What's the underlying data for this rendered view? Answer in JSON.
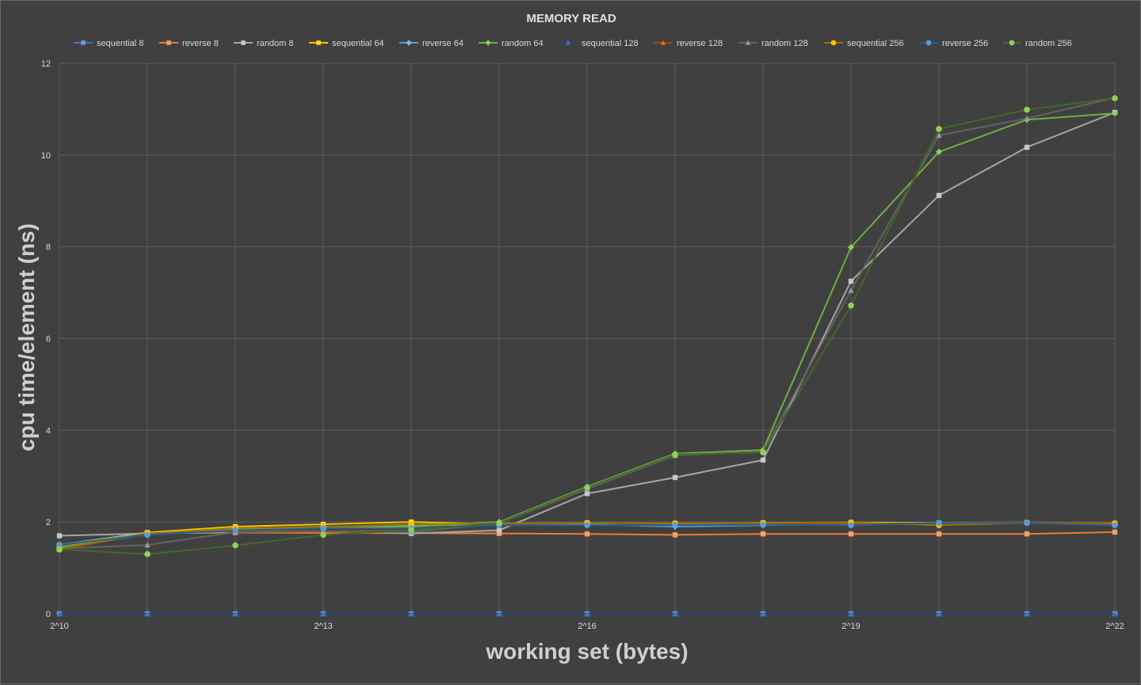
{
  "chart_data": {
    "type": "line",
    "title": "MEMORY READ",
    "xlabel": "working set (bytes)",
    "ylabel": "cpu time/element (ns)",
    "x": [
      1024,
      2048,
      4096,
      8192,
      16384,
      32768,
      65536,
      131072,
      262144,
      524288,
      1048576,
      2097152,
      4194304
    ],
    "x_tick_labels": [
      "2^10",
      "2^13",
      "2^16",
      "2^19",
      "2^22"
    ],
    "x_tick_values": [
      1024,
      8192,
      65536,
      524288,
      4194304
    ],
    "x_scale": "log2",
    "ylim": [
      0,
      12
    ],
    "y_ticks": [
      0,
      2,
      4,
      6,
      8,
      10,
      12
    ],
    "grid": true,
    "legend_position": "top",
    "series": [
      {
        "name": "sequential 8",
        "color": "#4472c4",
        "marker": "square",
        "values": [
          0,
          0,
          0,
          0,
          0,
          0,
          0,
          0,
          0,
          0,
          0,
          0,
          0
        ]
      },
      {
        "name": "reverse 8",
        "color": "#ed7d31",
        "marker": "square",
        "values": [
          1.45,
          1.75,
          1.77,
          1.76,
          1.76,
          1.75,
          1.74,
          1.72,
          1.74,
          1.74,
          1.74,
          1.74,
          1.78
        ]
      },
      {
        "name": "random 8",
        "color": "#a5a5a5",
        "marker": "square",
        "values": [
          1.7,
          1.75,
          1.78,
          1.8,
          1.75,
          1.82,
          2.62,
          2.97,
          3.35,
          7.25,
          9.12,
          10.17,
          10.93
        ]
      },
      {
        "name": "sequential 64",
        "color": "#ffc000",
        "marker": "square",
        "values": [
          1.5,
          1.77,
          1.9,
          1.95,
          2.0,
          1.95,
          1.98,
          1.97,
          1.98,
          1.99,
          1.98,
          1.99,
          1.97
        ]
      },
      {
        "name": "reverse 64",
        "color": "#5b9bd5",
        "marker": "diamond",
        "values": [
          1.5,
          1.75,
          1.85,
          1.9,
          1.92,
          1.95,
          1.95,
          1.9,
          1.93,
          1.95,
          1.98,
          1.98,
          1.93
        ]
      },
      {
        "name": "random 64",
        "color": "#70ad47",
        "marker": "diamond",
        "values": [
          1.45,
          1.73,
          1.85,
          1.87,
          1.9,
          2.0,
          2.77,
          3.49,
          3.57,
          7.99,
          10.07,
          10.77,
          10.91
        ]
      },
      {
        "name": "sequential 128",
        "color": "#264478",
        "marker": "triangle",
        "values": [
          0,
          0,
          0,
          0,
          0,
          0,
          0,
          0,
          0,
          0,
          0,
          0,
          0
        ]
      },
      {
        "name": "reverse 128",
        "color": "#9e480e",
        "marker": "triangle",
        "values": [
          1.4,
          1.75,
          1.8,
          1.8,
          1.82,
          1.95,
          1.98,
          1.98,
          1.97,
          1.97,
          1.97,
          1.99,
          1.98
        ]
      },
      {
        "name": "random 128",
        "color": "#636363",
        "marker": "triangle",
        "values": [
          1.42,
          1.5,
          1.78,
          1.79,
          1.78,
          1.97,
          2.72,
          3.45,
          3.54,
          7.05,
          10.43,
          10.8,
          11.25
        ]
      },
      {
        "name": "sequential 256",
        "color": "#997300",
        "marker": "circle",
        "values": [
          1.42,
          1.74,
          1.87,
          1.89,
          1.95,
          1.97,
          1.98,
          1.97,
          1.98,
          1.99,
          1.93,
          1.98,
          1.97
        ]
      },
      {
        "name": "reverse 256",
        "color": "#255e91",
        "marker": "circle",
        "values": [
          1.5,
          1.72,
          1.82,
          1.86,
          1.86,
          1.93,
          1.93,
          1.93,
          1.94,
          1.93,
          1.98,
          1.98,
          1.93
        ]
      },
      {
        "name": "random 256",
        "color": "#43682b",
        "marker": "circle",
        "values": [
          1.4,
          1.3,
          1.49,
          1.72,
          1.82,
          1.98,
          2.75,
          3.47,
          3.52,
          6.72,
          10.57,
          10.99,
          11.24
        ]
      }
    ]
  },
  "marker_colors": {
    "sequential 8": "#6f96e0",
    "reverse 8": "#f4a06a",
    "random 8": "#c8c8c8",
    "sequential 64": "#ffd426",
    "reverse 64": "#7fb6ea",
    "random 64": "#8fd05a",
    "sequential 128": "#4472c4",
    "reverse 128": "#e06a1a",
    "random 128": "#9a9a9a",
    "sequential 256": "#ffc000",
    "reverse 256": "#5b9bd5",
    "random 256": "#8fd05a"
  }
}
